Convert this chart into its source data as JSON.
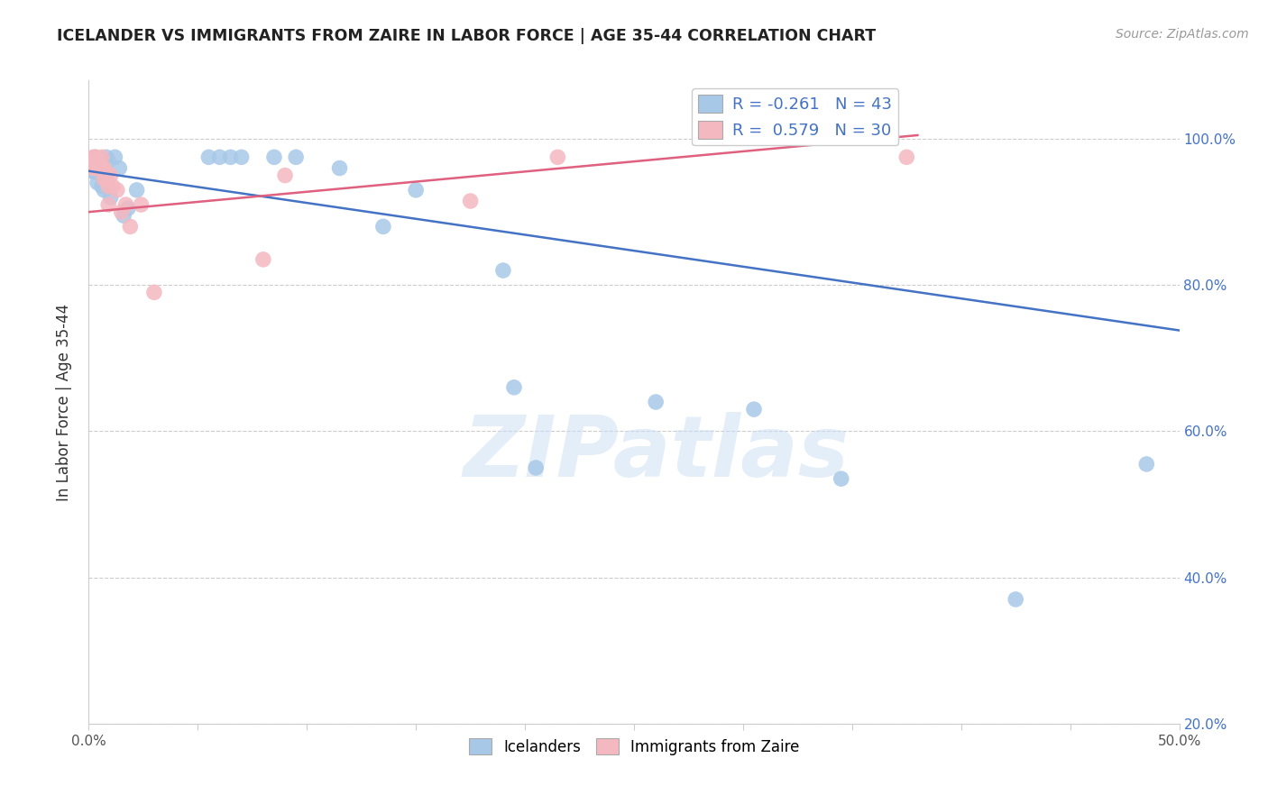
{
  "title": "ICELANDER VS IMMIGRANTS FROM ZAIRE IN LABOR FORCE | AGE 35-44 CORRELATION CHART",
  "source": "Source: ZipAtlas.com",
  "xlabel": "",
  "ylabel": "In Labor Force | Age 35-44",
  "xlim": [
    0.0,
    0.5
  ],
  "ylim": [
    0.2,
    1.08
  ],
  "xticks": [
    0.0,
    0.05,
    0.1,
    0.15,
    0.2,
    0.25,
    0.3,
    0.35,
    0.4,
    0.45,
    0.5
  ],
  "xticklabels": [
    "0.0%",
    "",
    "",
    "",
    "",
    "",
    "",
    "",
    "",
    "",
    "50.0%"
  ],
  "yticks": [
    0.2,
    0.4,
    0.6,
    0.8,
    1.0
  ],
  "yticklabels": [
    "20.0%",
    "40.0%",
    "60.0%",
    "80.0%",
    "100.0%"
  ],
  "blue_color": "#a8c8e8",
  "pink_color": "#f4b8c0",
  "blue_line_color": "#4472c4",
  "pink_line_color": "#e06080",
  "legend_blue_label": "R = -0.261   N = 43",
  "legend_pink_label": "R =  0.579   N = 30",
  "legend_icelanders": "Icelanders",
  "legend_zaire": "Immigrants from Zaire",
  "watermark": "ZIPatlas",
  "blue_x": [
    0.001,
    0.002,
    0.002,
    0.003,
    0.003,
    0.003,
    0.004,
    0.004,
    0.004,
    0.005,
    0.005,
    0.005,
    0.006,
    0.006,
    0.006,
    0.007,
    0.007,
    0.008,
    0.008,
    0.009,
    0.01,
    0.012,
    0.014,
    0.016,
    0.018,
    0.022,
    0.055,
    0.06,
    0.065,
    0.07,
    0.085,
    0.095,
    0.115,
    0.135,
    0.15,
    0.19,
    0.195,
    0.205,
    0.26,
    0.305,
    0.345,
    0.425,
    0.485
  ],
  "blue_y": [
    0.97,
    0.965,
    0.955,
    0.975,
    0.965,
    0.955,
    0.965,
    0.955,
    0.94,
    0.97,
    0.96,
    0.955,
    0.96,
    0.95,
    0.935,
    0.945,
    0.93,
    0.975,
    0.945,
    0.97,
    0.92,
    0.975,
    0.96,
    0.895,
    0.905,
    0.93,
    0.975,
    0.975,
    0.975,
    0.975,
    0.975,
    0.975,
    0.96,
    0.88,
    0.93,
    0.82,
    0.66,
    0.55,
    0.64,
    0.63,
    0.535,
    0.37,
    0.555
  ],
  "pink_x": [
    0.001,
    0.002,
    0.002,
    0.003,
    0.003,
    0.004,
    0.004,
    0.005,
    0.005,
    0.006,
    0.006,
    0.007,
    0.007,
    0.008,
    0.008,
    0.009,
    0.009,
    0.01,
    0.011,
    0.013,
    0.015,
    0.017,
    0.019,
    0.024,
    0.03,
    0.08,
    0.09,
    0.175,
    0.215,
    0.375
  ],
  "pink_y": [
    0.97,
    0.975,
    0.96,
    0.975,
    0.96,
    0.97,
    0.96,
    0.97,
    0.96,
    0.975,
    0.96,
    0.96,
    0.945,
    0.955,
    0.945,
    0.935,
    0.91,
    0.95,
    0.935,
    0.93,
    0.9,
    0.91,
    0.88,
    0.91,
    0.79,
    0.835,
    0.95,
    0.915,
    0.975,
    0.975
  ],
  "blue_trendline_x": [
    0.0,
    0.5
  ],
  "blue_trendline_y": [
    0.956,
    0.738
  ],
  "pink_trendline_x": [
    0.0,
    0.38
  ],
  "pink_trendline_y": [
    0.9,
    1.005
  ]
}
